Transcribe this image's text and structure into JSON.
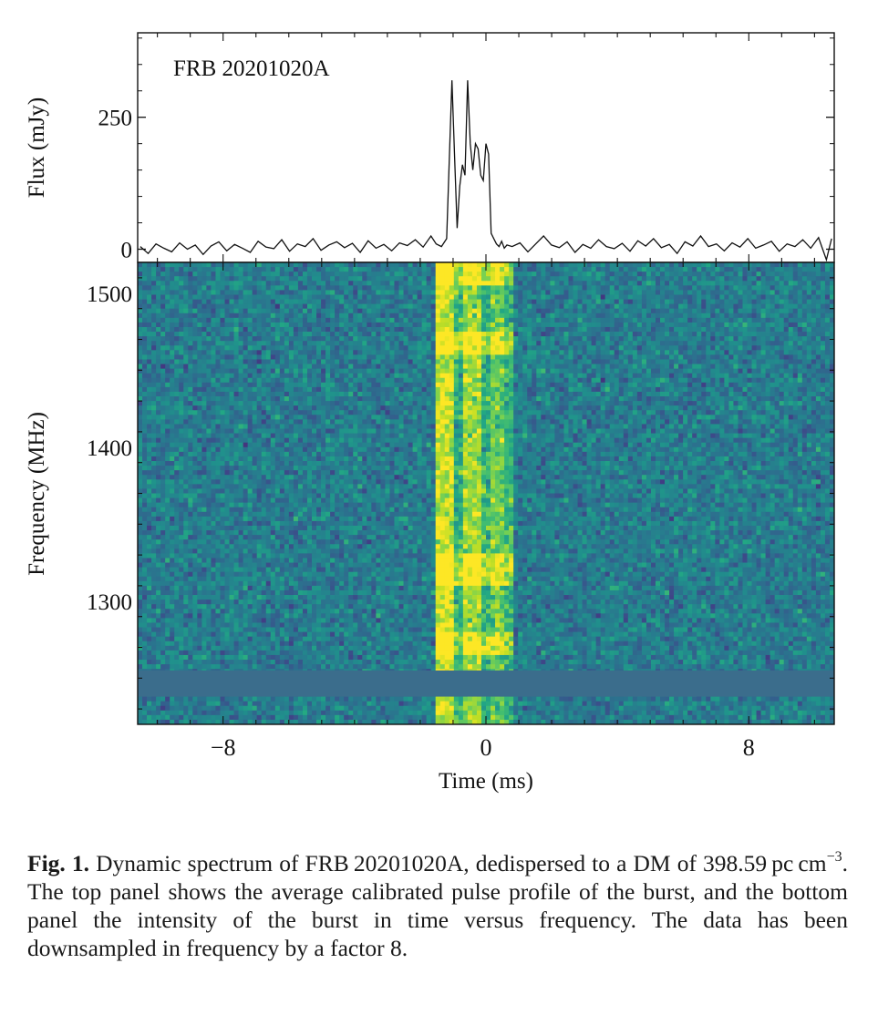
{
  "chart_data": [
    {
      "type": "line",
      "panel": "top",
      "annotation": "FRB 20201020A",
      "ylabel": "Flux (mJy)",
      "xlabel": "",
      "yticks": [
        0,
        250
      ],
      "xlim": [
        -13.3,
        13.3
      ],
      "ylim": [
        -25,
        410
      ],
      "grid": false,
      "legend": "none",
      "line_color": "#111111",
      "x": [
        -13.2,
        -12.9,
        -12.6,
        -12.3,
        -12.0,
        -11.7,
        -11.4,
        -11.1,
        -10.8,
        -10.5,
        -10.2,
        -9.9,
        -9.6,
        -9.3,
        -9.0,
        -8.7,
        -8.4,
        -8.1,
        -7.8,
        -7.5,
        -7.2,
        -6.9,
        -6.6,
        -6.3,
        -6.0,
        -5.7,
        -5.4,
        -5.1,
        -4.8,
        -4.5,
        -4.2,
        -3.9,
        -3.6,
        -3.3,
        -3.0,
        -2.7,
        -2.4,
        -2.1,
        -1.9,
        -1.7,
        -1.5,
        -1.3,
        -1.2,
        -1.1,
        -1.0,
        -0.9,
        -0.8,
        -0.7,
        -0.6,
        -0.5,
        -0.4,
        -0.3,
        -0.2,
        -0.1,
        0.0,
        0.1,
        0.2,
        0.3,
        0.4,
        0.5,
        0.6,
        0.7,
        0.8,
        1.0,
        1.3,
        1.6,
        1.9,
        2.2,
        2.5,
        2.8,
        3.1,
        3.4,
        3.7,
        4.0,
        4.3,
        4.6,
        4.9,
        5.2,
        5.5,
        5.8,
        6.1,
        6.4,
        6.7,
        7.0,
        7.3,
        7.6,
        7.9,
        8.2,
        8.5,
        8.8,
        9.1,
        9.4,
        9.7,
        10.0,
        10.3,
        10.6,
        10.9,
        11.2,
        11.5,
        11.8,
        12.1,
        12.4,
        12.7,
        13.0,
        13.2
      ],
      "y": [
        5,
        -8,
        10,
        2,
        -5,
        12,
        0,
        8,
        -10,
        6,
        14,
        -3,
        9,
        2,
        -6,
        15,
        4,
        1,
        18,
        -4,
        10,
        5,
        20,
        -2,
        8,
        14,
        3,
        11,
        -6,
        16,
        2,
        9,
        -3,
        12,
        7,
        18,
        4,
        25,
        10,
        5,
        20,
        320,
        180,
        40,
        120,
        160,
        140,
        320,
        200,
        150,
        200,
        190,
        140,
        130,
        200,
        180,
        30,
        20,
        10,
        5,
        15,
        2,
        8,
        5,
        12,
        -5,
        10,
        25,
        8,
        3,
        14,
        -6,
        9,
        2,
        18,
        5,
        1,
        11,
        -4,
        16,
        6,
        20,
        3,
        9,
        -8,
        14,
        6,
        25,
        5,
        10,
        -3,
        12,
        4,
        20,
        2,
        8,
        15,
        -4,
        10,
        5,
        18,
        2,
        22,
        -20,
        20
      ]
    },
    {
      "type": "heatmap",
      "panel": "bottom",
      "xlabel": "Time (ms)",
      "ylabel": "Frequency (MHz)",
      "xticks": [
        -8,
        0,
        8
      ],
      "yticks": [
        1300,
        1400,
        1500
      ],
      "xlim": [
        -10.6,
        10.6
      ],
      "ylim": [
        1220,
        1520
      ],
      "colormap": "viridis",
      "burst_time_range_ms": [
        -1.5,
        0.9
      ],
      "masked_band_mhz": [
        1238,
        1255
      ],
      "masked_color": "#3b6d8c",
      "bright_bands_mhz": [
        [
          1265,
          1280
        ],
        [
          1310,
          1330
        ],
        [
          1460,
          1475
        ],
        [
          1505,
          1520
        ]
      ]
    }
  ],
  "caption": {
    "label": "Fig. 1.",
    "text_part1": " Dynamic spectrum of FRB 20201020A, dedispersed to a DM of 398.59 pc cm",
    "superscript": "−3",
    "text_part2": ". The top panel shows the average calibrated pulse profile of the burst, and the bottom panel the intensity of the burst in time versus frequency. The data has been downsampled in frequency by a factor 8."
  }
}
